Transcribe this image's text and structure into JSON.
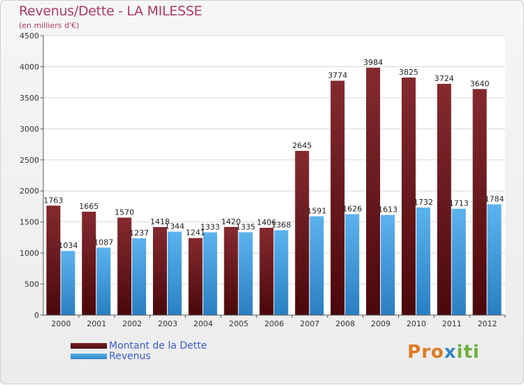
{
  "header": {
    "title": "Revenus/Dette - LA MILESSE",
    "subtitle": "(en milliers d'€)"
  },
  "legend": {
    "dette_label": "Montant de la Dette",
    "revenus_label": "Revenus"
  },
  "logo": {
    "text": "Proxiti"
  },
  "colors": {
    "dette": "#6e1a1f",
    "revenus": "#4aa3e2",
    "title": "#b23a63",
    "legend_text": "#3b5bd4"
  },
  "chart_data": {
    "type": "bar",
    "categories": [
      "2000",
      "2001",
      "2002",
      "2003",
      "2004",
      "2005",
      "2006",
      "2007",
      "2008",
      "2009",
      "2010",
      "2011",
      "2012"
    ],
    "series": [
      {
        "name": "Montant de la Dette",
        "values": [
          1763,
          1665,
          1570,
          1418,
          1241,
          1420,
          1406,
          2645,
          3774,
          3984,
          3825,
          3724,
          3640
        ]
      },
      {
        "name": "Revenus",
        "values": [
          1034,
          1087,
          1237,
          1344,
          1333,
          1335,
          1368,
          1591,
          1626,
          1613,
          1732,
          1713,
          1784
        ]
      }
    ],
    "title": "Revenus/Dette - LA MILESSE",
    "ylabel": "(en milliers d'€)",
    "ylim": [
      0,
      4500
    ],
    "yticks": [
      0,
      500,
      1000,
      1500,
      2000,
      2500,
      3000,
      3500,
      4000,
      4500
    ],
    "grid": true,
    "legend_position": "bottom-left"
  }
}
